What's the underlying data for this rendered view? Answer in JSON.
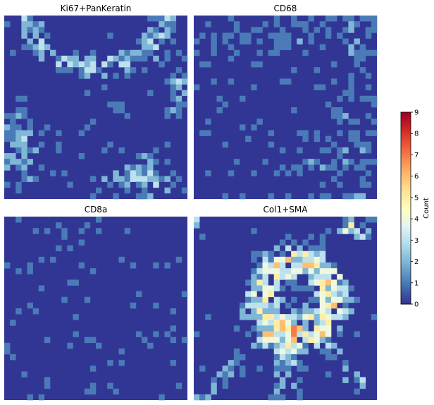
{
  "chart_data": {
    "type": "heatmap",
    "panels": [
      {
        "title": "Ki67+PanKeratin",
        "grid_size": [
          32,
          32
        ]
      },
      {
        "title": "CD68",
        "grid_size": [
          32,
          32
        ]
      },
      {
        "title": "CD8a",
        "grid_size": [
          32,
          32
        ]
      },
      {
        "title": "Col1+SMA",
        "grid_size": [
          32,
          32
        ]
      }
    ],
    "colorbar": {
      "label": "Count",
      "range": [
        0,
        9
      ],
      "ticks": [
        "0",
        "1",
        "2",
        "3",
        "4",
        "5",
        "6",
        "7",
        "8",
        "9"
      ],
      "colormap": "RdYlBu_r"
    },
    "axes_visible": false,
    "grid": false
  }
}
